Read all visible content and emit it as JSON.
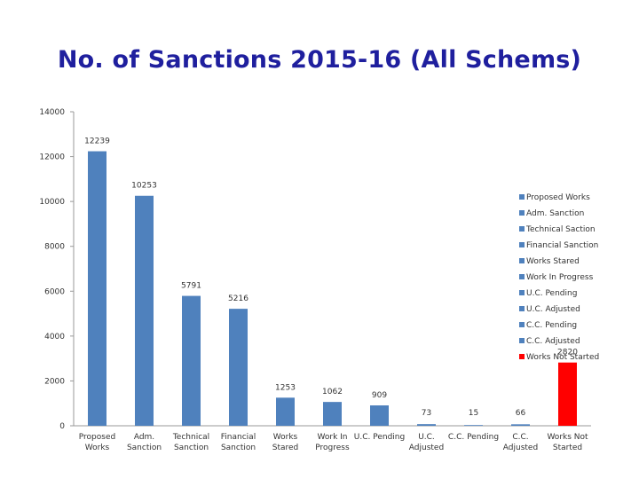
{
  "chart_data": {
    "type": "bar",
    "title": "No. of Sanctions 2015-16 (All Schems)",
    "xlabel": "",
    "ylabel": "",
    "ylim": [
      0,
      14000
    ],
    "yticks": [
      "0",
      "2000",
      "4000",
      "6000",
      "8000",
      "10000",
      "12000",
      "14000"
    ],
    "grid": false,
    "legend_position": "right",
    "categories": [
      [
        "Proposed",
        "Works"
      ],
      [
        "Adm.",
        "Sanction"
      ],
      [
        "Technical",
        "Sanction"
      ],
      [
        "Financial",
        "Sanction"
      ],
      [
        "Works",
        "Stared"
      ],
      [
        "Work In",
        "Progress"
      ],
      [
        "U.C. Pending"
      ],
      [
        "U.C.",
        "Adjusted"
      ],
      [
        "C.C. Pending"
      ],
      [
        "C.C.",
        "Adjusted"
      ],
      [
        "Works Not",
        "Started"
      ]
    ],
    "values": [
      12239,
      10253,
      5791,
      5216,
      1253,
      1062,
      909,
      73,
      15,
      66,
      2820
    ],
    "data_labels": [
      "12239",
      "10253",
      "5791",
      "5216",
      "1253",
      "1062",
      "909",
      "73",
      "15",
      "66",
      "2820"
    ],
    "legend": [
      "Proposed Works",
      "Adm. Sanction",
      "Technical Saction",
      "Financial Sanction",
      "Works Stared",
      "Work In Progress",
      "U.C. Pending",
      "U.C. Adjusted",
      "C.C. Pending",
      "C.C. Adjusted",
      "Works Not Started"
    ],
    "colors": [
      "#4f81bd",
      "#4f81bd",
      "#4f81bd",
      "#4f81bd",
      "#4f81bd",
      "#4f81bd",
      "#4f81bd",
      "#4f81bd",
      "#4f81bd",
      "#4f81bd",
      "#ff0000"
    ]
  }
}
